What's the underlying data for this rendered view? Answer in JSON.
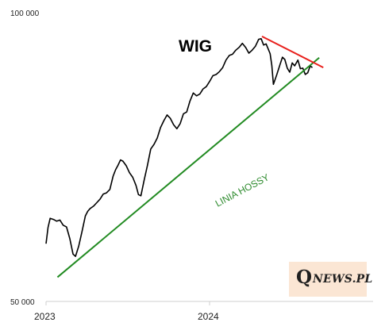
{
  "chart_data": {
    "type": "line",
    "title": "WIG",
    "y_ticks": [
      "100 000",
      "50 000"
    ],
    "ylim": [
      50000,
      100000
    ],
    "x_ticks": [
      {
        "label": "2023",
        "value": 2023.0
      },
      {
        "label": "2024",
        "value": 2024.0
      }
    ],
    "xlim": [
      2023.0,
      2024.98
    ],
    "series": [
      {
        "type": "line",
        "color": "#000000",
        "points": [
          [
            2023.0,
            60000
          ],
          [
            2023.012,
            62800
          ],
          [
            2023.025,
            64400
          ],
          [
            2023.045,
            64200
          ],
          [
            2023.065,
            63900
          ],
          [
            2023.085,
            64100
          ],
          [
            2023.105,
            63200
          ],
          [
            2023.125,
            62900
          ],
          [
            2023.145,
            60900
          ],
          [
            2023.165,
            58200
          ],
          [
            2023.18,
            57800
          ],
          [
            2023.2,
            59600
          ],
          [
            2023.22,
            62100
          ],
          [
            2023.24,
            64800
          ],
          [
            2023.255,
            65600
          ],
          [
            2023.27,
            66100
          ],
          [
            2023.29,
            66500
          ],
          [
            2023.31,
            67100
          ],
          [
            2023.33,
            67700
          ],
          [
            2023.35,
            68600
          ],
          [
            2023.37,
            68800
          ],
          [
            2023.39,
            69400
          ],
          [
            2023.41,
            71700
          ],
          [
            2023.425,
            72800
          ],
          [
            2023.44,
            73600
          ],
          [
            2023.455,
            74500
          ],
          [
            2023.47,
            74300
          ],
          [
            2023.49,
            73500
          ],
          [
            2023.51,
            72300
          ],
          [
            2023.53,
            71500
          ],
          [
            2023.55,
            70100
          ],
          [
            2023.565,
            68500
          ],
          [
            2023.58,
            68300
          ],
          [
            2023.6,
            71000
          ],
          [
            2023.62,
            73600
          ],
          [
            2023.64,
            76400
          ],
          [
            2023.66,
            77200
          ],
          [
            2023.68,
            78300
          ],
          [
            2023.7,
            80100
          ],
          [
            2023.72,
            81300
          ],
          [
            2023.74,
            82300
          ],
          [
            2023.76,
            81700
          ],
          [
            2023.78,
            80600
          ],
          [
            2023.8,
            79900
          ],
          [
            2023.82,
            80800
          ],
          [
            2023.84,
            82500
          ],
          [
            2023.86,
            82800
          ],
          [
            2023.88,
            84700
          ],
          [
            2023.9,
            86100
          ],
          [
            2023.92,
            85600
          ],
          [
            2023.94,
            85900
          ],
          [
            2023.96,
            86800
          ],
          [
            2023.98,
            87200
          ],
          [
            2024.0,
            88100
          ],
          [
            2024.02,
            89100
          ],
          [
            2024.04,
            89300
          ],
          [
            2024.06,
            89800
          ],
          [
            2024.08,
            90500
          ],
          [
            2024.1,
            91800
          ],
          [
            2024.12,
            92600
          ],
          [
            2024.14,
            92800
          ],
          [
            2024.16,
            93500
          ],
          [
            2024.18,
            94000
          ],
          [
            2024.2,
            94700
          ],
          [
            2024.22,
            94000
          ],
          [
            2024.24,
            93000
          ],
          [
            2024.26,
            93500
          ],
          [
            2024.28,
            94200
          ],
          [
            2024.3,
            95400
          ],
          [
            2024.315,
            95500
          ],
          [
            2024.33,
            94400
          ],
          [
            2024.345,
            94600
          ],
          [
            2024.36,
            93600
          ],
          [
            2024.37,
            92900
          ],
          [
            2024.38,
            90900
          ],
          [
            2024.39,
            87600
          ],
          [
            2024.41,
            89200
          ],
          [
            2024.43,
            91000
          ],
          [
            2024.445,
            92300
          ],
          [
            2024.46,
            91900
          ],
          [
            2024.475,
            90400
          ],
          [
            2024.49,
            89700
          ],
          [
            2024.505,
            91300
          ],
          [
            2024.52,
            90800
          ],
          [
            2024.54,
            91800
          ],
          [
            2024.555,
            90300
          ],
          [
            2024.57,
            90400
          ],
          [
            2024.585,
            89300
          ],
          [
            2024.6,
            89600
          ],
          [
            2024.615,
            90800
          ],
          [
            2024.628,
            90500
          ]
        ]
      },
      {
        "type": "line",
        "color": "#228b22",
        "points": [
          [
            2023.07,
            54200
          ],
          [
            2024.67,
            92200
          ]
        ]
      },
      {
        "type": "line",
        "color": "#e8201c",
        "points": [
          [
            2024.32,
            95900
          ],
          [
            2024.695,
            90500
          ]
        ]
      }
    ],
    "annotations": [
      {
        "text": "LINIA HOSSY",
        "color": "#228b22"
      }
    ],
    "grid": false,
    "legend": "none"
  },
  "watermark": {
    "letter": "Q",
    "rest": "NEWS.PL"
  }
}
